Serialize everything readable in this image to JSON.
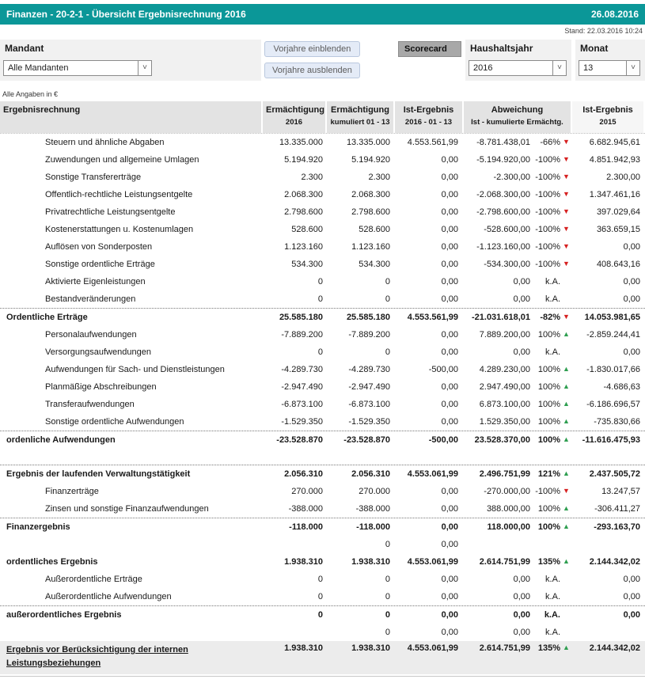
{
  "title_bar": {
    "title": "Finanzen - 20-2-1 - Übersicht Ergebnisrechnung 2016",
    "date": "26.08.2016"
  },
  "stand": "Stand: 22.03.2016 10:24",
  "filters": {
    "mandant_label": "Mandant",
    "mandant_value": "Alle Mandanten",
    "btn_show": "Vorjahre einblenden",
    "btn_hide": "Vorjahre ausblenden",
    "scorecard_label": "Scorecard",
    "haushaltsjahr_label": "Haushaltsjahr",
    "haushaltsjahr_value": "2016",
    "monat_label": "Monat",
    "monat_value": "13"
  },
  "units_note": "Alle Angaben in €",
  "table": {
    "headers": [
      {
        "line1": "Ergebnisrechnung",
        "line2": ""
      },
      {
        "line1": "Ermächtigung",
        "line2": "2016"
      },
      {
        "line1": "Ermächtigung",
        "line2": "kumuliert 01 - 13"
      },
      {
        "line1": "Ist-Ergebnis",
        "line2": "2016 - 01 - 13"
      },
      {
        "line1": "Abweichung",
        "line2": "Ist - kumulierte Ermächtg."
      },
      {
        "line1": "Ist-Ergebnis",
        "line2": "2015"
      }
    ],
    "rows": [
      {
        "label": "Steuern und ähnliche Abgaben",
        "indent": true,
        "values": {
          "erm2016": "13.335.000",
          "erm_kum": "13.335.000",
          "ist2016": "4.553.561,99",
          "abw_val": "-8.781.438,01",
          "abw_pct": "-66%",
          "trend": "down",
          "ist2015": "6.682.945,61"
        }
      },
      {
        "label": "Zuwendungen und allgemeine Umlagen",
        "indent": true,
        "values": {
          "erm2016": "5.194.920",
          "erm_kum": "5.194.920",
          "ist2016": "0,00",
          "abw_val": "-5.194.920,00",
          "abw_pct": "-100%",
          "trend": "down",
          "ist2015": "4.851.942,93"
        }
      },
      {
        "label": "Sonstige Transfererträge",
        "indent": true,
        "values": {
          "erm2016": "2.300",
          "erm_kum": "2.300",
          "ist2016": "0,00",
          "abw_val": "-2.300,00",
          "abw_pct": "-100%",
          "trend": "down",
          "ist2015": "2.300,00"
        }
      },
      {
        "label": "Offentlich-rechtliche Leistungsentgelte",
        "indent": true,
        "values": {
          "erm2016": "2.068.300",
          "erm_kum": "2.068.300",
          "ist2016": "0,00",
          "abw_val": "-2.068.300,00",
          "abw_pct": "-100%",
          "trend": "down",
          "ist2015": "1.347.461,16"
        }
      },
      {
        "label": "Privatrechtliche Leistungsentgelte",
        "indent": true,
        "values": {
          "erm2016": "2.798.600",
          "erm_kum": "2.798.600",
          "ist2016": "0,00",
          "abw_val": "-2.798.600,00",
          "abw_pct": "-100%",
          "trend": "down",
          "ist2015": "397.029,64"
        }
      },
      {
        "label": "Kostenerstattungen u. Kostenumlagen",
        "indent": true,
        "values": {
          "erm2016": "528.600",
          "erm_kum": "528.600",
          "ist2016": "0,00",
          "abw_val": "-528.600,00",
          "abw_pct": "-100%",
          "trend": "down",
          "ist2015": "363.659,15"
        }
      },
      {
        "label": "Auflösen von Sonderposten",
        "indent": true,
        "values": {
          "erm2016": "1.123.160",
          "erm_kum": "1.123.160",
          "ist2016": "0,00",
          "abw_val": "-1.123.160,00",
          "abw_pct": "-100%",
          "trend": "down",
          "ist2015": "0,00"
        }
      },
      {
        "label": "Sonstige ordentliche Erträge",
        "indent": true,
        "values": {
          "erm2016": "534.300",
          "erm_kum": "534.300",
          "ist2016": "0,00",
          "abw_val": "-534.300,00",
          "abw_pct": "-100%",
          "trend": "down",
          "ist2015": "408.643,16"
        }
      },
      {
        "label": "Aktivierte Eigenleistungen",
        "indent": true,
        "values": {
          "erm2016": "0",
          "erm_kum": "0",
          "ist2016": "0,00",
          "abw_val": "0,00",
          "abw_pct": "k.A.",
          "trend": "",
          "ist2015": "0,00"
        }
      },
      {
        "label": "Bestandveränderungen",
        "indent": true,
        "values": {
          "erm2016": "0",
          "erm_kum": "0",
          "ist2016": "0,00",
          "abw_val": "0,00",
          "abw_pct": "k.A.",
          "trend": "",
          "ist2015": "0,00"
        }
      },
      {
        "label": "Ordentliche Erträge",
        "bold": true,
        "sep_above": true,
        "values": {
          "erm2016": "25.585.180",
          "erm_kum": "25.585.180",
          "ist2016": "4.553.561,99",
          "abw_val": "-21.031.618,01",
          "abw_pct": "-82%",
          "trend": "down",
          "ist2015": "14.053.981,65"
        }
      },
      {
        "label": "Personalaufwendungen",
        "indent": true,
        "values": {
          "erm2016": "-7.889.200",
          "erm_kum": "-7.889.200",
          "ist2016": "0,00",
          "abw_val": "7.889.200,00",
          "abw_pct": "100%",
          "trend": "up",
          "ist2015": "-2.859.244,41"
        }
      },
      {
        "label": "Versorgungsaufwendungen",
        "indent": true,
        "values": {
          "erm2016": "0",
          "erm_kum": "0",
          "ist2016": "0,00",
          "abw_val": "0,00",
          "abw_pct": "k.A.",
          "trend": "",
          "ist2015": "0,00"
        }
      },
      {
        "label": "Aufwendungen für Sach- und Dienstleistungen",
        "indent": true,
        "values": {
          "erm2016": "-4.289.730",
          "erm_kum": "-4.289.730",
          "ist2016": "-500,00",
          "abw_val": "4.289.230,00",
          "abw_pct": "100%",
          "trend": "up",
          "ist2015": "-1.830.017,66"
        }
      },
      {
        "label": "Planmäßige Abschreibungen",
        "indent": true,
        "values": {
          "erm2016": "-2.947.490",
          "erm_kum": "-2.947.490",
          "ist2016": "0,00",
          "abw_val": "2.947.490,00",
          "abw_pct": "100%",
          "trend": "up",
          "ist2015": "-4.686,63"
        }
      },
      {
        "label": "Transferaufwendungen",
        "indent": true,
        "values": {
          "erm2016": "-6.873.100",
          "erm_kum": "-6.873.100",
          "ist2016": "0,00",
          "abw_val": "6.873.100,00",
          "abw_pct": "100%",
          "trend": "up",
          "ist2015": "-6.186.696,57"
        }
      },
      {
        "label": "Sonstige ordentliche Aufwendungen",
        "indent": true,
        "values": {
          "erm2016": "-1.529.350",
          "erm_kum": "-1.529.350",
          "ist2016": "0,00",
          "abw_val": "1.529.350,00",
          "abw_pct": "100%",
          "trend": "up",
          "ist2015": "-735.830,66"
        }
      },
      {
        "label": "ordenliche Aufwendungen",
        "bold": true,
        "sep_above": true,
        "values": {
          "erm2016": "-23.528.870",
          "erm_kum": "-23.528.870",
          "ist2016": "-500,00",
          "abw_val": "23.528.370,00",
          "abw_pct": "100%",
          "trend": "up",
          "ist2015": "-11.616.475,93"
        }
      },
      {
        "spacer": true
      },
      {
        "label": "Ergebnis der laufenden Verwaltungstätigkeit",
        "bold": true,
        "sep_above": true,
        "values": {
          "erm2016": "2.056.310",
          "erm_kum": "2.056.310",
          "ist2016": "4.553.061,99",
          "abw_val": "2.496.751,99",
          "abw_pct": "121%",
          "trend": "up",
          "ist2015": "2.437.505,72"
        }
      },
      {
        "label": "Finanzerträge",
        "indent": true,
        "values": {
          "erm2016": "270.000",
          "erm_kum": "270.000",
          "ist2016": "0,00",
          "abw_val": "-270.000,00",
          "abw_pct": "-100%",
          "trend": "down",
          "ist2015": "13.247,57"
        }
      },
      {
        "label": "Zinsen und sonstige Finanzaufwendungen",
        "indent": true,
        "values": {
          "erm2016": "-388.000",
          "erm_kum": "-388.000",
          "ist2016": "0,00",
          "abw_val": "388.000,00",
          "abw_pct": "100%",
          "trend": "up",
          "ist2015": "-306.411,27"
        }
      },
      {
        "label": "Finanzergebnis",
        "bold": true,
        "sep_above": true,
        "values": {
          "erm2016": "-118.000",
          "erm_kum": "-118.000",
          "ist2016": "0,00",
          "abw_val": "118.000,00",
          "abw_pct": "100%",
          "trend": "up",
          "ist2015": "-293.163,70"
        }
      },
      {
        "label": "",
        "values": {
          "erm2016": "",
          "erm_kum": "0",
          "ist2016": "0,00",
          "abw_val": "",
          "abw_pct": "",
          "trend": "",
          "ist2015": ""
        }
      },
      {
        "label": "ordentliches Ergebnis",
        "bold": true,
        "values": {
          "erm2016": "1.938.310",
          "erm_kum": "1.938.310",
          "ist2016": "4.553.061,99",
          "abw_val": "2.614.751,99",
          "abw_pct": "135%",
          "trend": "up",
          "ist2015": "2.144.342,02"
        }
      },
      {
        "label": "Außerordentliche Erträge",
        "indent": true,
        "values": {
          "erm2016": "0",
          "erm_kum": "0",
          "ist2016": "0,00",
          "abw_val": "0,00",
          "abw_pct": "k.A.",
          "trend": "",
          "ist2015": "0,00"
        }
      },
      {
        "label": "Außerordentliche Aufwendungen",
        "indent": true,
        "values": {
          "erm2016": "0",
          "erm_kum": "0",
          "ist2016": "0,00",
          "abw_val": "0,00",
          "abw_pct": "k.A.",
          "trend": "",
          "ist2015": "0,00"
        }
      },
      {
        "label": "außerordentliches Ergebnis",
        "bold": true,
        "sep_above": true,
        "values": {
          "erm2016": "0",
          "erm_kum": "0",
          "ist2016": "0,00",
          "abw_val": "0,00",
          "abw_pct": "k.A.",
          "trend": "",
          "ist2015": "0,00"
        }
      },
      {
        "label": "",
        "values": {
          "erm2016": "",
          "erm_kum": "0",
          "ist2016": "0,00",
          "abw_val": "0,00",
          "abw_pct": "k.A.",
          "trend": "",
          "ist2015": ""
        }
      },
      {
        "label": "Ergebnis vor Berücksichtigung der internen Leistungsbeziehungen",
        "bold": true,
        "highlight": true,
        "underline": true,
        "values": {
          "erm2016": "1.938.310",
          "erm_kum": "1.938.310",
          "ist2016": "4.553.061,99",
          "abw_val": "2.614.751,99",
          "abw_pct": "135%",
          "trend": "up",
          "ist2015": "2.144.342,02"
        }
      }
    ]
  },
  "icons": {
    "chevron_down": "˅",
    "arrow_up": "▲",
    "arrow_down": "▼"
  },
  "colors": {
    "teal_header": "#0b9798",
    "trend_up": "#2e9e50",
    "trend_down": "#d62020"
  }
}
